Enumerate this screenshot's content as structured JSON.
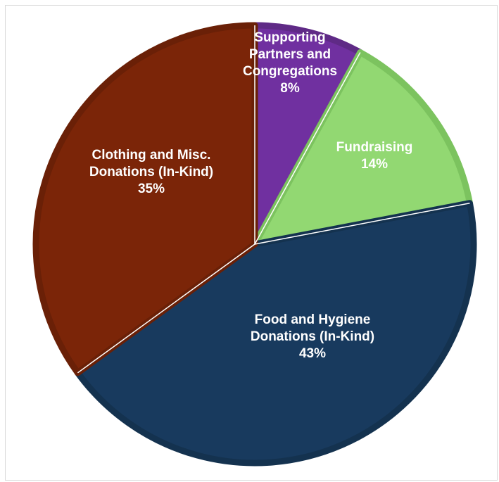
{
  "chart_data": {
    "type": "pie",
    "title": "",
    "legend": "none",
    "start_angle_deg": 0,
    "direction": "clockwise",
    "slices": [
      {
        "lines": [
          "Supporting",
          "Partners and",
          "Congregations"
        ],
        "pct_label": "8%",
        "value": 8,
        "color": "#7030a0",
        "border": "#5f2a86"
      },
      {
        "lines": [
          "Fundraising"
        ],
        "pct_label": "14%",
        "value": 14,
        "color": "#92d872",
        "border": "#7cc35f"
      },
      {
        "lines": [
          "Food and Hygiene",
          "Donations (In-Kind)"
        ],
        "pct_label": "43%",
        "value": 43,
        "color": "#183a5e",
        "border": "#14324f"
      },
      {
        "lines": [
          "Clothing and Misc.",
          "Donations (In-Kind)"
        ],
        "pct_label": "35%",
        "value": 35,
        "color": "#7b2508",
        "border": "#6a2007"
      }
    ]
  }
}
